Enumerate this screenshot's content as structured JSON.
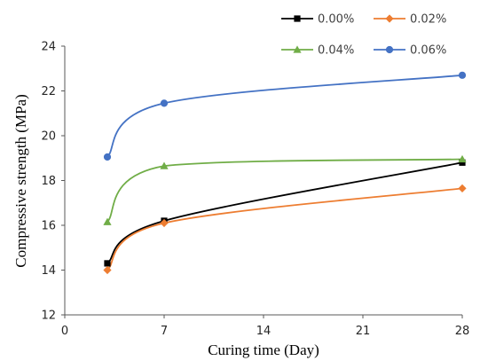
{
  "chart_data": {
    "type": "line",
    "title": "",
    "xlabel": "Curing time (Day)",
    "ylabel": "Compressive strength (MPa)",
    "xlim": [
      0,
      28
    ],
    "ylim": [
      12,
      24
    ],
    "xticks": [
      0,
      7,
      14,
      21,
      28
    ],
    "yticks": [
      12,
      14,
      16,
      18,
      20,
      22,
      24
    ],
    "grid": false,
    "legend_position": "top-right",
    "x": [
      3,
      7,
      28
    ],
    "series": [
      {
        "name": "0.00%",
        "values": [
          14.3,
          16.2,
          18.8
        ],
        "color": "#000000",
        "marker": "square"
      },
      {
        "name": "0.02%",
        "values": [
          14.0,
          16.1,
          17.65
        ],
        "color": "#ed7d31",
        "marker": "diamond"
      },
      {
        "name": "0.04%",
        "values": [
          16.15,
          18.65,
          18.95
        ],
        "color": "#70ad47",
        "marker": "triangle"
      },
      {
        "name": "0.06%",
        "values": [
          19.05,
          21.45,
          22.7
        ],
        "color": "#4472c4",
        "marker": "circle"
      }
    ]
  }
}
